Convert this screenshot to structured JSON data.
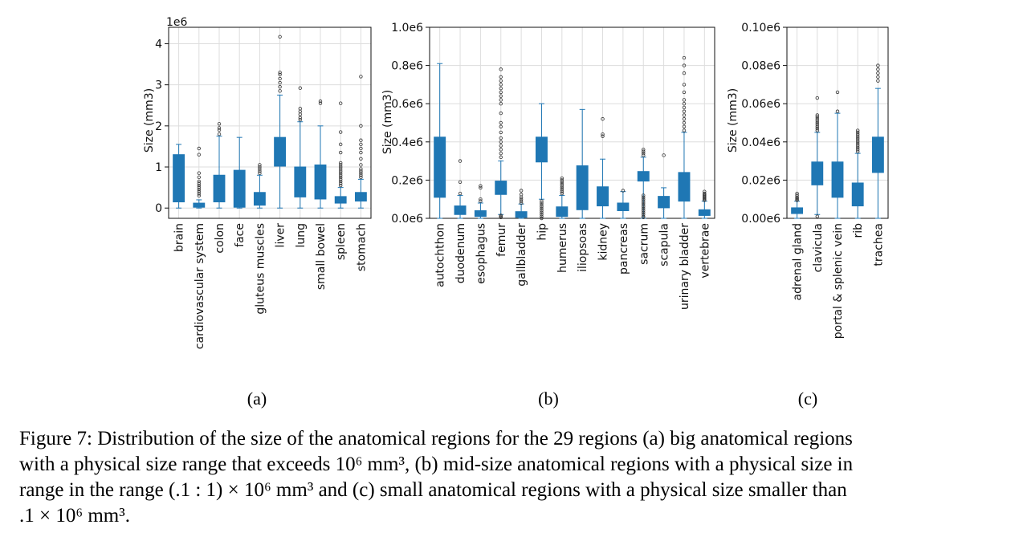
{
  "caption": {
    "lines": [
      "Figure 7: Distribution of the size of the anatomical regions for the 29 regions (a) big anatomical regions",
      "with a physical size range that exceeds 10⁶ mm³, (b) mid-size anatomical regions with a physical size in",
      "range in the range (.1 : 1) × 10⁶ mm³ and (c) small anatomical regions with a physical size smaller than",
      ".1 × 10⁶ mm³."
    ]
  },
  "style": {
    "box_color": "#1f77b4",
    "whisker_color": "#1f77b4",
    "grid_color": "#dddddd"
  },
  "chart_data": [
    {
      "type": "box",
      "panel_label": "(a)",
      "ylabel": "Size (mm3)",
      "y_offset_label": "1e6",
      "y_ticks": [
        0,
        1,
        2,
        3,
        4
      ],
      "y_tick_labels": [
        "0",
        "1",
        "2",
        "3",
        "4"
      ],
      "ylim": [
        -0.25,
        4.4
      ],
      "grid": true,
      "categories": [
        "brain",
        "cardiovascular system",
        "colon",
        "face",
        "gluteus muscles",
        "liver",
        "lung",
        "small bowel",
        "spleen",
        "stomach"
      ],
      "boxes": [
        {
          "whislo": 0.0,
          "q1": 0.15,
          "q3": 1.3,
          "whishi": 1.55,
          "fliers": []
        },
        {
          "whislo": 0.0,
          "q1": 0.02,
          "q3": 0.12,
          "whishi": 0.2,
          "fliers": [
            0.3,
            0.35,
            0.4,
            0.45,
            0.5,
            0.55,
            0.6,
            0.65,
            0.75,
            0.85,
            1.3,
            1.45
          ]
        },
        {
          "whislo": 0.0,
          "q1": 0.15,
          "q3": 0.8,
          "whishi": 1.75,
          "fliers": [
            1.8,
            1.9,
            1.95,
            2.05
          ]
        },
        {
          "whislo": 0.0,
          "q1": 0.02,
          "q3": 0.92,
          "whishi": 1.72,
          "fliers": []
        },
        {
          "whislo": 0.0,
          "q1": 0.07,
          "q3": 0.38,
          "whishi": 0.8,
          "fliers": [
            0.85,
            0.9,
            0.95,
            1.0,
            1.05
          ]
        },
        {
          "whislo": 0.0,
          "q1": 1.02,
          "q3": 1.72,
          "whishi": 2.75,
          "fliers": [
            2.85,
            2.95,
            3.05,
            3.15,
            3.25,
            3.3,
            4.17
          ]
        },
        {
          "whislo": 0.0,
          "q1": 0.27,
          "q3": 1.0,
          "whishi": 2.1,
          "fliers": [
            2.15,
            2.2,
            2.28,
            2.35,
            2.42,
            2.92
          ]
        },
        {
          "whislo": 0.0,
          "q1": 0.22,
          "q3": 1.05,
          "whishi": 2.0,
          "fliers": [
            2.55,
            2.6
          ]
        },
        {
          "whislo": 0.0,
          "q1": 0.12,
          "q3": 0.28,
          "whishi": 0.5,
          "fliers": [
            0.55,
            0.6,
            0.65,
            0.7,
            0.75,
            0.8,
            0.85,
            0.9,
            0.95,
            1.0,
            1.05,
            1.1,
            1.35,
            1.55,
            1.85,
            2.55
          ]
        },
        {
          "whislo": 0.0,
          "q1": 0.17,
          "q3": 0.38,
          "whishi": 0.7,
          "fliers": [
            0.75,
            0.8,
            0.85,
            0.9,
            0.95,
            1.05,
            1.2,
            1.35,
            1.45,
            1.55,
            1.65,
            2.0,
            3.2
          ]
        }
      ]
    },
    {
      "type": "box",
      "panel_label": "(b)",
      "ylabel": "Size (mm3)",
      "y_offset_label": "",
      "y_ticks": [
        0,
        0.2,
        0.4,
        0.6,
        0.8,
        1.0
      ],
      "y_tick_labels": [
        "0.0e6",
        "0.2e6",
        "0.4e6",
        "0.6e6",
        "0.8e6",
        "1.0e6"
      ],
      "ylim": [
        0,
        1.0
      ],
      "grid": true,
      "categories": [
        "autochthon",
        "duodenum",
        "esophagus",
        "femur",
        "gallbladder",
        "hip",
        "humerus",
        "iliopsoas",
        "kidney",
        "pancreas",
        "sacrum",
        "scapula",
        "urinary bladder",
        "vertebrae"
      ],
      "boxes": [
        {
          "whislo": 0.0,
          "q1": 0.11,
          "q3": 0.425,
          "whishi": 0.81,
          "fliers": []
        },
        {
          "whislo": 0.0,
          "q1": 0.02,
          "q3": 0.065,
          "whishi": 0.12,
          "fliers": [
            0.13,
            0.19,
            0.3
          ]
        },
        {
          "whislo": 0.0,
          "q1": 0.01,
          "q3": 0.04,
          "whishi": 0.08,
          "fliers": [
            0.09,
            0.1,
            0.16,
            0.17
          ]
        },
        {
          "whislo": 0.02,
          "q1": 0.125,
          "q3": 0.195,
          "whishi": 0.3,
          "fliers": [
            0.005,
            0.01,
            0.015,
            0.32,
            0.34,
            0.36,
            0.38,
            0.4,
            0.42,
            0.45,
            0.48,
            0.5,
            0.55,
            0.6,
            0.62,
            0.64,
            0.66,
            0.68,
            0.7,
            0.72,
            0.74,
            0.78
          ]
        },
        {
          "whislo": 0.0,
          "q1": 0.005,
          "q3": 0.035,
          "whishi": 0.075,
          "fliers": [
            0.08,
            0.09,
            0.1,
            0.11,
            0.125,
            0.145
          ]
        },
        {
          "whislo": 0.1,
          "q1": 0.295,
          "q3": 0.425,
          "whishi": 0.6,
          "fliers": [
            0.0,
            0.01,
            0.02,
            0.03,
            0.04,
            0.05,
            0.06,
            0.07,
            0.08,
            0.09
          ]
        },
        {
          "whislo": 0.0,
          "q1": 0.01,
          "q3": 0.06,
          "whishi": 0.12,
          "fliers": [
            0.13,
            0.14,
            0.15,
            0.16,
            0.17,
            0.18,
            0.19,
            0.2,
            0.21
          ]
        },
        {
          "whislo": 0.0,
          "q1": 0.045,
          "q3": 0.275,
          "whishi": 0.57,
          "fliers": []
        },
        {
          "whislo": 0.0,
          "q1": 0.065,
          "q3": 0.165,
          "whishi": 0.31,
          "fliers": [
            0.43,
            0.44,
            0.52
          ]
        },
        {
          "whislo": 0.0,
          "q1": 0.04,
          "q3": 0.08,
          "whishi": 0.14,
          "fliers": [
            0.145
          ]
        },
        {
          "whislo": 0.0,
          "q1": 0.195,
          "q3": 0.245,
          "whishi": 0.32,
          "fliers": [
            0.005,
            0.01,
            0.02,
            0.03,
            0.04,
            0.05,
            0.06,
            0.07,
            0.08,
            0.09,
            0.1,
            0.11,
            0.12,
            0.33,
            0.34,
            0.35,
            0.36
          ]
        },
        {
          "whislo": 0.0,
          "q1": 0.055,
          "q3": 0.115,
          "whishi": 0.16,
          "fliers": [
            0.33
          ]
        },
        {
          "whislo": 0.0,
          "q1": 0.09,
          "q3": 0.24,
          "whishi": 0.45,
          "fliers": [
            0.46,
            0.48,
            0.5,
            0.52,
            0.54,
            0.56,
            0.58,
            0.6,
            0.62,
            0.66,
            0.7,
            0.76,
            0.8,
            0.84
          ]
        },
        {
          "whislo": 0.0,
          "q1": 0.015,
          "q3": 0.045,
          "whishi": 0.09,
          "fliers": [
            0.095,
            0.1,
            0.105,
            0.11,
            0.115,
            0.12,
            0.125,
            0.13,
            0.14
          ]
        }
      ]
    },
    {
      "type": "box",
      "panel_label": "(c)",
      "ylabel": "Size (mm3)",
      "y_offset_label": "",
      "y_ticks": [
        0,
        0.02,
        0.04,
        0.06,
        0.08,
        0.1
      ],
      "y_tick_labels": [
        "0.00e6",
        "0.02e6",
        "0.04e6",
        "0.06e6",
        "0.08e6",
        "0.10e6"
      ],
      "ylim": [
        0,
        0.1
      ],
      "grid": true,
      "categories": [
        "adrenal gland",
        "clavicula",
        "portal & splenic vein",
        "rib",
        "trachea"
      ],
      "boxes": [
        {
          "whislo": 0.0,
          "q1": 0.0025,
          "q3": 0.0055,
          "whishi": 0.009,
          "fliers": [
            0.0095,
            0.01,
            0.0105,
            0.011,
            0.012,
            0.013
          ]
        },
        {
          "whislo": 0.002,
          "q1": 0.0175,
          "q3": 0.0295,
          "whishi": 0.045,
          "fliers": [
            0.001,
            0.046,
            0.047,
            0.048,
            0.049,
            0.05,
            0.051,
            0.052,
            0.053,
            0.054,
            0.063
          ]
        },
        {
          "whislo": 0.0,
          "q1": 0.011,
          "q3": 0.0295,
          "whishi": 0.055,
          "fliers": [
            0.056,
            0.066
          ]
        },
        {
          "whislo": 0.0,
          "q1": 0.0065,
          "q3": 0.0185,
          "whishi": 0.034,
          "fliers": [
            0.035,
            0.036,
            0.037,
            0.038,
            0.039,
            0.04,
            0.041,
            0.042,
            0.043,
            0.044,
            0.045,
            0.046
          ]
        },
        {
          "whislo": 0.0,
          "q1": 0.024,
          "q3": 0.0425,
          "whishi": 0.068,
          "fliers": [
            0.072,
            0.074,
            0.076,
            0.078,
            0.08
          ]
        }
      ]
    }
  ]
}
